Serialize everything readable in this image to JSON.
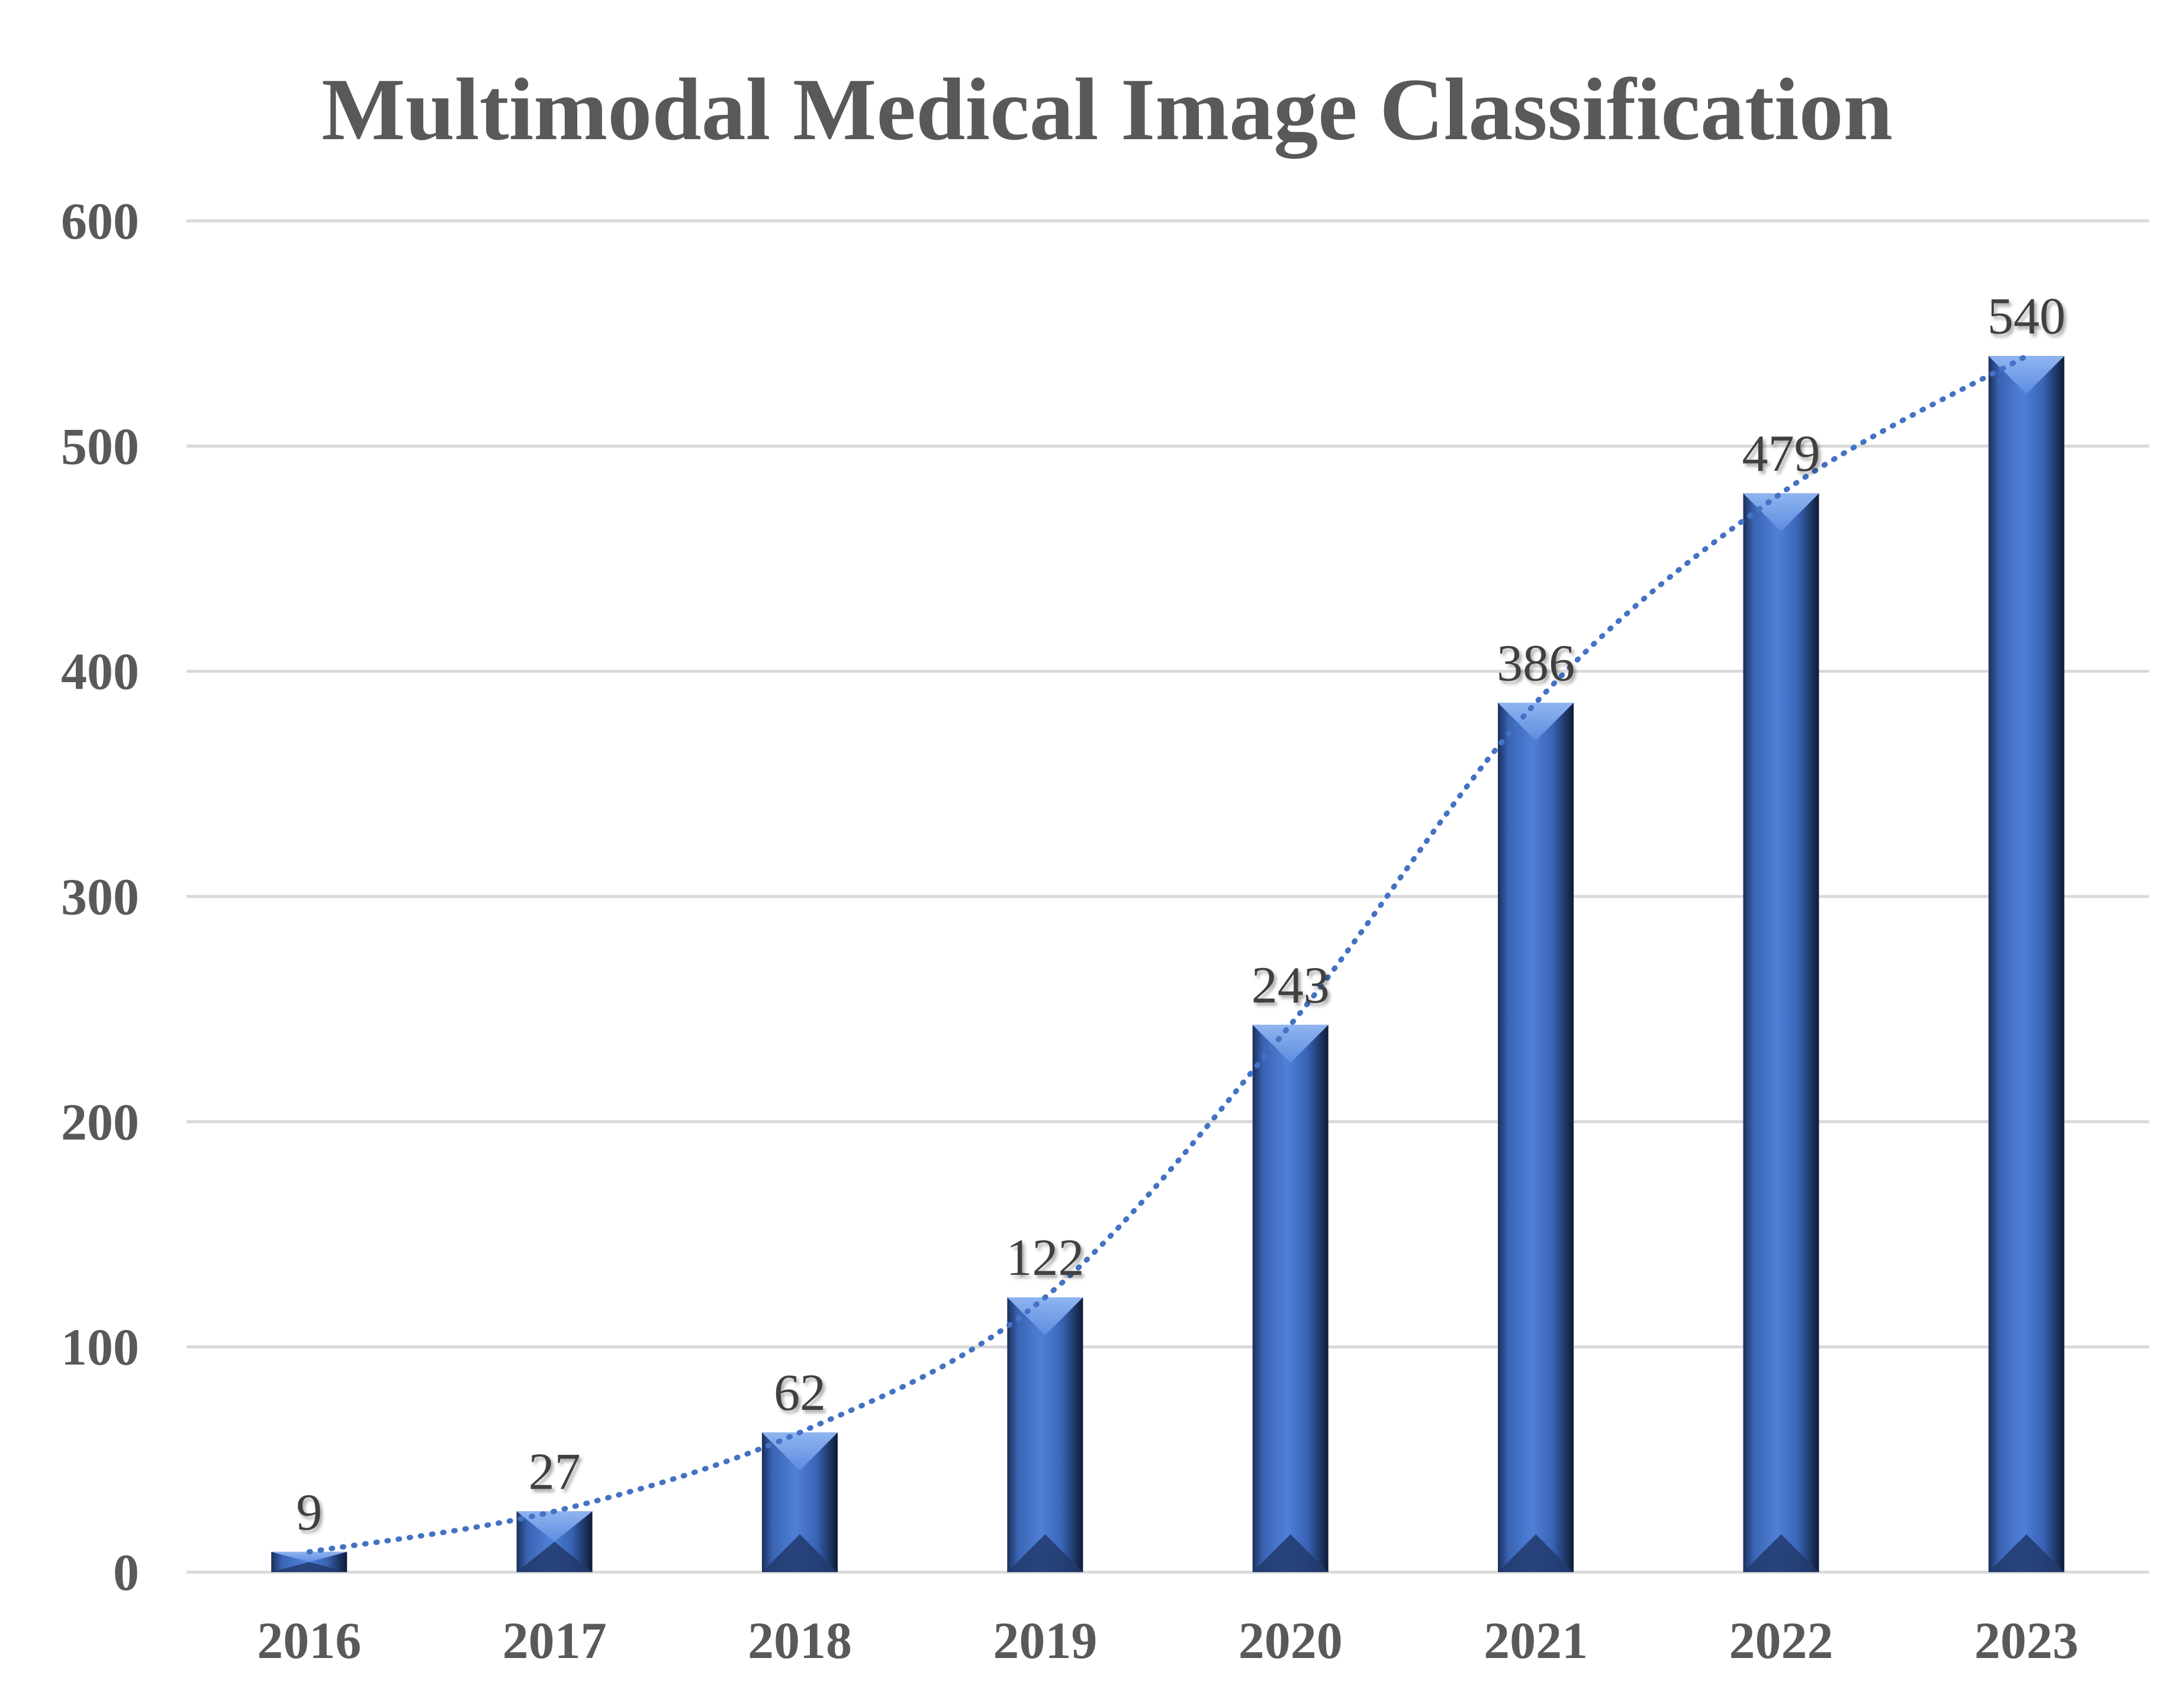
{
  "chart_data": {
    "type": "bar",
    "title": "Multimodal Medical Image Classification",
    "categories": [
      "2016",
      "2017",
      "2018",
      "2019",
      "2020",
      "2021",
      "2022",
      "2023"
    ],
    "values": [
      9,
      27,
      62,
      122,
      243,
      386,
      479,
      540
    ],
    "data_labels": [
      "9",
      "27",
      "62",
      "122",
      "243",
      "386",
      "479",
      "540"
    ],
    "y_ticks": [
      "0",
      "100",
      "200",
      "300",
      "400",
      "500",
      "600"
    ],
    "ylim": [
      0,
      600
    ],
    "grid": true,
    "legend": "none",
    "trendline": "dotted smooth curve",
    "colors": {
      "bar": "#4472c4",
      "bar_dark": "#14254a",
      "trend": "#4472c4",
      "grid": "#d9d9d9",
      "text": "#595959"
    }
  }
}
